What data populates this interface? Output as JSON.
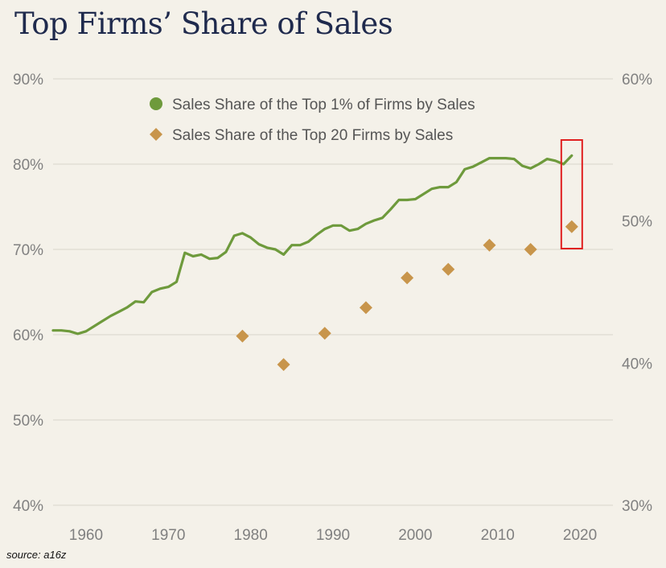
{
  "chart_data": {
    "type": "line",
    "title": "Top Firms’ Share of Sales",
    "x_ticks": [
      "1960",
      "1970",
      "1980",
      "1990",
      "2000",
      "2010",
      "2020"
    ],
    "xlim": [
      1956,
      2024
    ],
    "left_axis": {
      "ticks": [
        "40%",
        "50%",
        "60%",
        "70%",
        "80%",
        "90%"
      ],
      "ylim": [
        40,
        90
      ]
    },
    "right_axis": {
      "ticks": [
        "30%",
        "40%",
        "50%",
        "60%"
      ],
      "ylim": [
        30,
        60
      ]
    },
    "grid": "horizontal",
    "legend_position": "top-center",
    "series": [
      {
        "name": "Sales Share of the Top 1% of Firms  by Sales",
        "marker": "line",
        "axis": "left",
        "color": "#6e9a3c",
        "x": [
          1956,
          1957,
          1958,
          1959,
          1960,
          1961,
          1962,
          1963,
          1964,
          1965,
          1966,
          1967,
          1968,
          1969,
          1970,
          1971,
          1972,
          1973,
          1974,
          1975,
          1976,
          1977,
          1978,
          1979,
          1980,
          1981,
          1982,
          1983,
          1984,
          1985,
          1986,
          1987,
          1988,
          1989,
          1990,
          1991,
          1992,
          1993,
          1994,
          1995,
          1996,
          1997,
          1998,
          1999,
          2000,
          2001,
          2002,
          2003,
          2004,
          2005,
          2006,
          2007,
          2008,
          2009,
          2010,
          2011,
          2012,
          2013,
          2014,
          2015,
          2016,
          2017,
          2018,
          2019
        ],
        "y": [
          60.5,
          60.5,
          60.4,
          60.1,
          60.4,
          61.0,
          61.6,
          62.2,
          62.7,
          63.2,
          63.9,
          63.8,
          65.0,
          65.4,
          65.6,
          66.2,
          69.6,
          69.2,
          69.4,
          68.9,
          69.0,
          69.7,
          71.6,
          71.9,
          71.4,
          70.6,
          70.2,
          70.0,
          69.4,
          70.5,
          70.5,
          70.9,
          71.7,
          72.4,
          72.8,
          72.8,
          72.2,
          72.4,
          73.0,
          73.4,
          73.7,
          74.7,
          75.8,
          75.8,
          75.9,
          76.5,
          77.1,
          77.3,
          77.3,
          77.9,
          79.4,
          79.7,
          80.2,
          80.7,
          80.7,
          80.7,
          80.6,
          79.8,
          79.5,
          80.0,
          80.6,
          80.4,
          80.0,
          81.0
        ]
      },
      {
        "name": "Sales Share of the Top 20 Firms by Sales",
        "marker": "diamond",
        "axis": "right",
        "color": "#c8954b",
        "x": [
          1979,
          1984,
          1989,
          1994,
          1999,
          2004,
          2009,
          2014,
          2019
        ],
        "y": [
          41.9,
          39.9,
          42.1,
          43.9,
          46.0,
          46.6,
          48.3,
          48.0,
          49.6
        ]
      }
    ],
    "annotation": {
      "type": "highlight-box",
      "x": 2019,
      "color": "#e02020"
    }
  },
  "source": "source: a16z"
}
